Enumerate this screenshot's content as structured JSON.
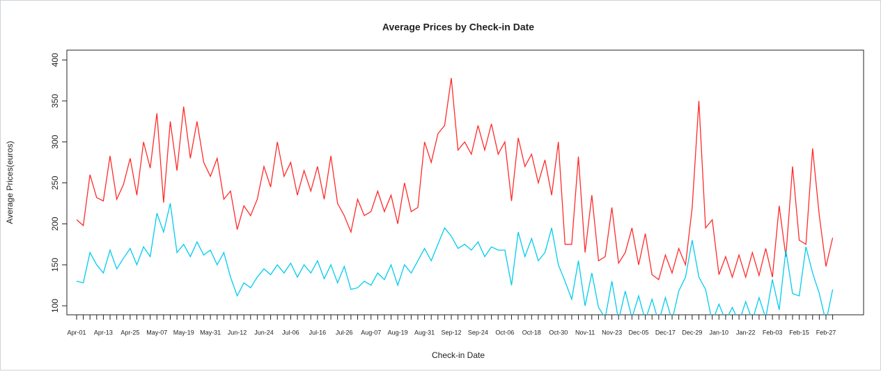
{
  "chart_data": {
    "type": "line",
    "title": "Average Prices by Check-in Date",
    "x_label": "Check-in Date",
    "y_label": "Average Prices(euros)",
    "categories": [
      "Apr-01",
      null,
      null,
      null,
      "Apr-13",
      null,
      null,
      null,
      "Apr-25",
      null,
      null,
      null,
      "May-07",
      null,
      null,
      null,
      "May-19",
      null,
      null,
      null,
      "May-31",
      null,
      null,
      null,
      "Jun-12",
      null,
      null,
      null,
      "Jun-24",
      null,
      null,
      null,
      "Jul-06",
      null,
      null,
      null,
      "Jul-16",
      null,
      null,
      null,
      "Jul-26",
      null,
      null,
      null,
      "Aug-07",
      null,
      null,
      null,
      "Aug-19",
      null,
      null,
      null,
      "Aug-31",
      null,
      null,
      null,
      "Sep-12",
      null,
      null,
      null,
      "Sep-24",
      null,
      null,
      null,
      "Oct-06",
      null,
      null,
      null,
      "Oct-18",
      null,
      null,
      null,
      "Oct-30",
      null,
      null,
      null,
      "Nov-11",
      null,
      null,
      null,
      "Nov-23",
      null,
      null,
      null,
      "Dec-05",
      null,
      null,
      null,
      "Dec-17",
      null,
      null,
      null,
      "Dec-29",
      null,
      null,
      null,
      "Jan-10",
      null,
      null,
      null,
      "Jan-22",
      null,
      null,
      null,
      "Feb-03",
      null,
      null,
      null,
      "Feb-15",
      null,
      null,
      null,
      "Feb-27",
      null
    ],
    "series": [
      {
        "color": "#ff2a2a",
        "values": [
          205,
          198,
          260,
          232,
          228,
          283,
          230,
          248,
          280,
          235,
          300,
          268,
          335,
          226,
          325,
          265,
          343,
          280,
          325,
          275,
          258,
          280,
          230,
          240,
          193,
          222,
          210,
          230,
          270,
          245,
          300,
          258,
          275,
          235,
          265,
          240,
          270,
          230,
          283,
          225,
          210,
          190,
          230,
          210,
          215,
          240,
          215,
          235,
          200,
          250,
          215,
          220,
          300,
          275,
          310,
          320,
          378,
          290,
          300,
          285,
          320,
          290,
          322,
          285,
          300,
          228,
          305,
          270,
          285,
          250,
          278,
          235,
          300,
          175,
          175,
          282,
          165,
          235,
          155,
          160,
          220,
          152,
          165,
          195,
          150,
          188,
          138,
          132,
          162,
          140,
          170,
          150,
          220,
          350,
          195,
          205,
          138,
          160,
          135,
          162,
          135,
          165,
          137,
          170,
          135,
          222,
          160,
          270,
          180,
          175,
          292,
          210,
          148,
          183
        ]
      },
      {
        "color": "#00ccee",
        "values": [
          130,
          128,
          165,
          150,
          140,
          168,
          145,
          158,
          170,
          150,
          172,
          160,
          213,
          190,
          225,
          165,
          175,
          160,
          178,
          162,
          168,
          150,
          165,
          135,
          112,
          128,
          122,
          135,
          145,
          138,
          150,
          140,
          152,
          135,
          150,
          140,
          155,
          133,
          150,
          128,
          148,
          120,
          122,
          130,
          125,
          140,
          132,
          150,
          125,
          150,
          140,
          155,
          170,
          155,
          175,
          195,
          185,
          170,
          175,
          168,
          178,
          160,
          172,
          168,
          168,
          125,
          190,
          160,
          182,
          155,
          165,
          195,
          150,
          130,
          108,
          155,
          100,
          140,
          98,
          85,
          130,
          82,
          118,
          85,
          112,
          82,
          108,
          80,
          110,
          82,
          118,
          135,
          180,
          135,
          120,
          80,
          102,
          82,
          98,
          80,
          105,
          82,
          110,
          85,
          132,
          95,
          168,
          115,
          112,
          172,
          140,
          115,
          80,
          120
        ]
      }
    ],
    "ylim": [
      89,
      412
    ],
    "yticks": [
      100,
      150,
      200,
      250,
      300,
      350,
      400
    ]
  }
}
